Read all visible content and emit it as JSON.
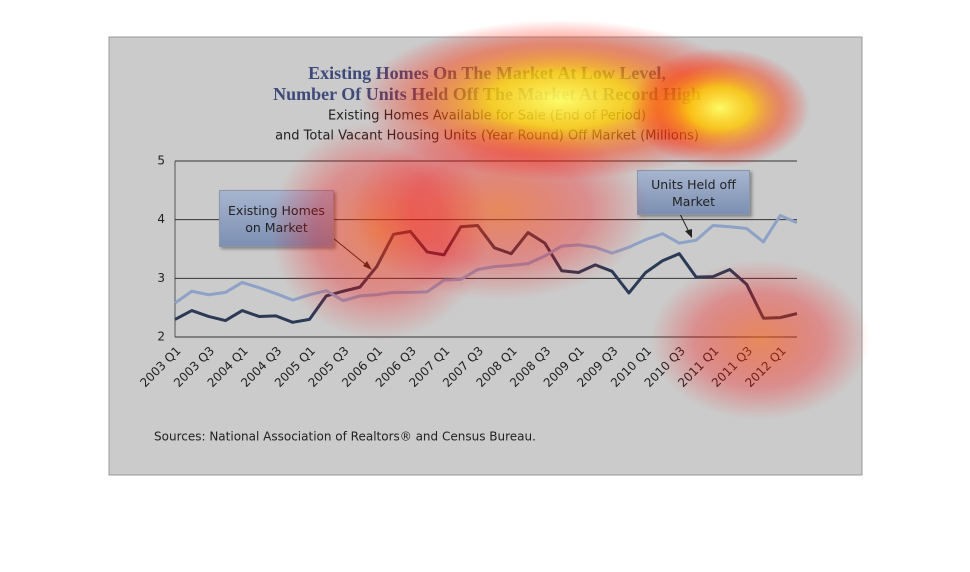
{
  "chart_data": {
    "type": "line",
    "title": [
      "Existing Homes On The Market At Low Level,",
      "Number Of Units Held Off The Market At Record High"
    ],
    "subtitle": [
      "Existing Homes Available for Sale (End of Period)",
      "and Total Vacant Housing Units (Year Round) Off Market (Millions)"
    ],
    "categories": [
      "2003 Q1",
      null,
      "2003 Q3",
      null,
      "2004 Q1",
      null,
      "2004 Q3",
      null,
      "2005 Q1",
      null,
      "2005 Q3",
      null,
      "2006 Q1",
      null,
      "2006 Q3",
      null,
      "2007 Q1",
      null,
      "2007 Q3",
      null,
      "2008 Q1",
      null,
      "2008 Q3",
      null,
      "2009 Q1",
      null,
      "2009 Q3",
      null,
      "2010 Q1",
      null,
      "2010 Q3",
      null,
      "2011 Q1",
      null,
      "2011 Q3",
      null,
      "2012 Q1",
      null
    ],
    "series": [
      {
        "name": "Existing Homes on Market",
        "color": "#2b3a55",
        "values": [
          2.3,
          2.45,
          2.35,
          2.28,
          2.45,
          2.35,
          2.36,
          2.25,
          2.3,
          2.7,
          2.78,
          2.85,
          3.2,
          3.75,
          3.8,
          3.45,
          3.4,
          3.88,
          3.9,
          3.52,
          3.42,
          3.78,
          3.6,
          3.13,
          3.1,
          3.23,
          3.12,
          2.75,
          3.1,
          3.3,
          3.42,
          3.02,
          3.03,
          3.15,
          2.9,
          2.32,
          2.33,
          2.4
        ]
      },
      {
        "name": "Units Held off Market",
        "color": "#8da2c6",
        "values": [
          2.58,
          2.78,
          2.72,
          2.76,
          2.93,
          2.84,
          2.74,
          2.63,
          2.72,
          2.79,
          2.62,
          2.7,
          2.72,
          2.76,
          2.76,
          2.77,
          2.97,
          2.98,
          3.15,
          3.2,
          3.22,
          3.25,
          3.38,
          3.55,
          3.57,
          3.53,
          3.43,
          3.53,
          3.66,
          3.76,
          3.6,
          3.65,
          3.9,
          3.88,
          3.85,
          3.62,
          4.07,
          3.95
        ]
      }
    ],
    "ylim": [
      2,
      5
    ],
    "yticks": [
      2,
      3,
      4,
      5
    ],
    "grid": true,
    "source": "Sources: National Association of Realtors® and Census Bureau."
  }
}
